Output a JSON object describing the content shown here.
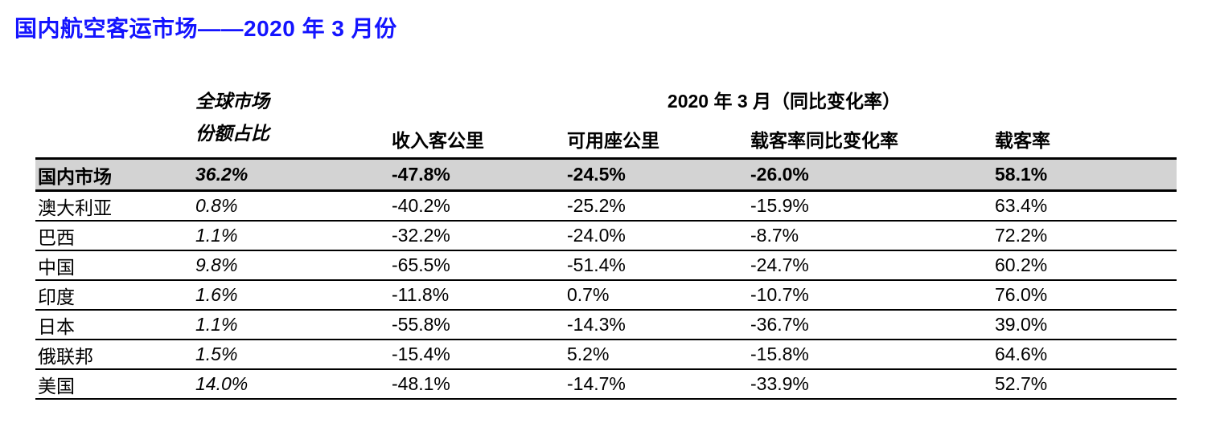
{
  "page": {
    "title": "国内航空客运市场——2020 年 3 月份"
  },
  "colors": {
    "title_blue": "#1414ff",
    "highlight_row_bg": "#d3d3d3",
    "border": "#000000"
  },
  "table": {
    "header": {
      "share_line1": "全球市场",
      "share_line2": "份额占比",
      "group": "2020 年 3 月（同比变化率）",
      "columns": [
        "收入客公里",
        "可用座公里",
        "载客率同比变化率",
        "载客率"
      ]
    },
    "rows": [
      {
        "label": "国内市场",
        "share": "36.2%",
        "rpk": "-47.8%",
        "ask": "-24.5%",
        "plf_change": "-26.0%",
        "plf": "58.1%",
        "highlight": true
      },
      {
        "label": "澳大利亚",
        "share": "0.8%",
        "rpk": "-40.2%",
        "ask": "-25.2%",
        "plf_change": "-15.9%",
        "plf": "63.4%",
        "highlight": false
      },
      {
        "label": "巴西",
        "share": "1.1%",
        "rpk": "-32.2%",
        "ask": "-24.0%",
        "plf_change": "-8.7%",
        "plf": "72.2%",
        "highlight": false
      },
      {
        "label": "中国",
        "share": "9.8%",
        "rpk": "-65.5%",
        "ask": "-51.4%",
        "plf_change": "-24.7%",
        "plf": "60.2%",
        "highlight": false
      },
      {
        "label": "印度",
        "share": "1.6%",
        "rpk": "-11.8%",
        "ask": "0.7%",
        "plf_change": "-10.7%",
        "plf": "76.0%",
        "highlight": false
      },
      {
        "label": "日本",
        "share": "1.1%",
        "rpk": "-55.8%",
        "ask": "-14.3%",
        "plf_change": "-36.7%",
        "plf": "39.0%",
        "highlight": false
      },
      {
        "label": "俄联邦",
        "share": "1.5%",
        "rpk": "-15.4%",
        "ask": "5.2%",
        "plf_change": "-15.8%",
        "plf": "64.6%",
        "highlight": false
      },
      {
        "label": "美国",
        "share": "14.0%",
        "rpk": "-48.1%",
        "ask": "-14.7%",
        "plf_change": "-33.9%",
        "plf": "52.7%",
        "highlight": false
      }
    ]
  }
}
